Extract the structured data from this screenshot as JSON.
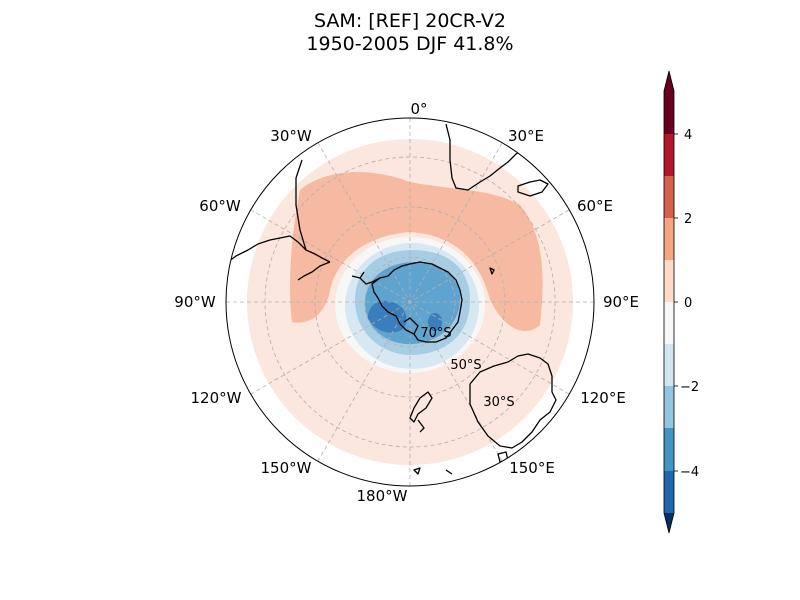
{
  "title": {
    "line1": "SAM: [REF] 20CR-V2",
    "line2": "1950-2005 DJF 41.8%"
  },
  "map": {
    "projection": "south-polar-stereographic",
    "longitude_labels": [
      "0°",
      "30°E",
      "60°E",
      "90°E",
      "120°E",
      "150°E",
      "180°W",
      "150°W",
      "120°W",
      "90°W",
      "60°W",
      "30°W"
    ],
    "latitude_labels": [
      "70°S",
      "50°S",
      "30°S"
    ],
    "coastline_color": "#000000",
    "gridline_style": "dashed-grey"
  },
  "colorbar": {
    "tick_labels": [
      "4",
      "2",
      "0",
      "−2",
      "−4"
    ],
    "levels": [
      -5,
      -4,
      -3,
      -2,
      -1,
      0,
      1,
      2,
      3,
      4,
      5
    ],
    "colors": [
      "#053061",
      "#2166ac",
      "#4393c3",
      "#92c5de",
      "#d1e5f0",
      "#f7f7f7",
      "#fddbc7",
      "#f4a582",
      "#d6604d",
      "#b2182b",
      "#67001f"
    ],
    "extend": "both"
  },
  "chart_data": {
    "type": "heatmap",
    "title": "SAM: [REF] 20CR-V2 1950-2005 DJF 41.8%",
    "field": "SAM pattern, filled contours",
    "colorbar_range": [
      -5,
      5
    ],
    "colorbar_ticks": [
      4,
      2,
      0,
      -2,
      -4
    ],
    "colormap": "RdBu_r",
    "regions": [
      {
        "area": "Antarctica / high latitudes (south of ~60°S)",
        "value_range": [
          -4,
          -1
        ]
      },
      {
        "area": "Minimum near Antarctic Peninsula / Bellingshausen Sea",
        "value_range": [
          -4,
          -3
        ]
      },
      {
        "area": "Mid-latitude ring (~40-55°S), South Atlantic to Indian Ocean",
        "value_range": [
          1,
          2
        ]
      },
      {
        "area": "Mid-latitude ring, South Pacific",
        "value_range": [
          1,
          2
        ]
      },
      {
        "area": "Subtropics (~20-40°S)",
        "value_range": [
          0,
          1
        ]
      }
    ]
  }
}
